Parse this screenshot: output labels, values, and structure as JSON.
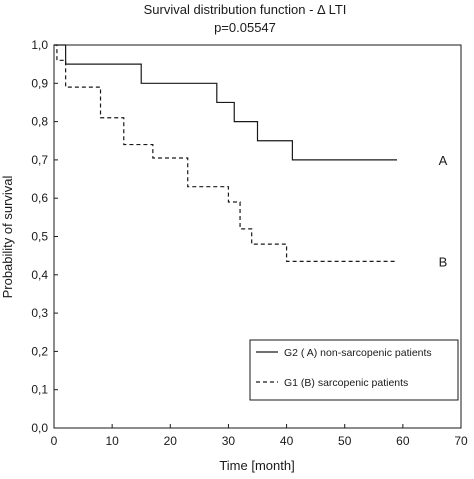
{
  "chart_data": {
    "type": "line",
    "title": "Survival distribution function - Δ LTI",
    "subtitle": "p=0.05547",
    "xlabel": "Time [month]",
    "ylabel": "Probability of survival",
    "xlim": [
      0,
      70
    ],
    "ylim": [
      0,
      1.0
    ],
    "x_ticks": [
      "0",
      "10",
      "20",
      "30",
      "40",
      "50",
      "60",
      "70"
    ],
    "y_ticks": [
      "0,0",
      "0,1",
      "0,2",
      "0,3",
      "0,4",
      "0,5",
      "0,6",
      "0,7",
      "0,8",
      "0,9",
      "1,0"
    ],
    "step": true,
    "series": [
      {
        "name": "G2 ( A)  non-sarcopenic patients",
        "end_label": "A",
        "line_style": "solid",
        "x": [
          0,
          2,
          15,
          28,
          31,
          35,
          41,
          59
        ],
        "y": [
          1.0,
          0.95,
          0.9,
          0.85,
          0.8,
          0.75,
          0.7,
          0.7
        ]
      },
      {
        "name": "G1  (B) sarcopenic patients",
        "end_label": "B",
        "line_style": "dashed",
        "x": [
          0,
          0.5,
          2,
          8,
          12,
          17,
          23,
          30,
          32,
          34,
          40,
          59
        ],
        "y": [
          1.0,
          0.96,
          0.89,
          0.81,
          0.74,
          0.705,
          0.63,
          0.59,
          0.52,
          0.48,
          0.435,
          0.435
        ]
      }
    ],
    "legend": {
      "position": "bottom-right"
    },
    "grid": false,
    "colors": {
      "line": "#1a1a1a",
      "background": "#ffffff"
    }
  }
}
